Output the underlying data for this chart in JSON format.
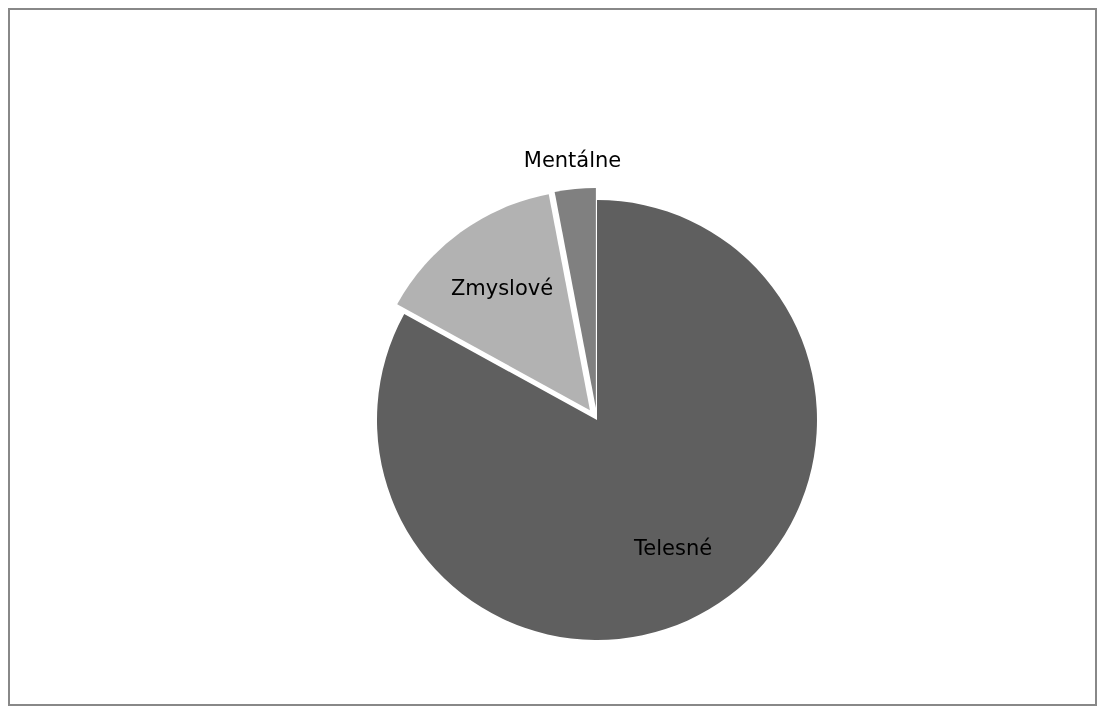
{
  "chart_data": {
    "type": "pie",
    "categories": [
      "Telesné",
      "Zmyslové",
      "Mentálne"
    ],
    "values": [
      83,
      14,
      3
    ],
    "colors": [
      "#5f5f5f",
      "#b2b2b2",
      "#808080"
    ],
    "legend": false
  }
}
